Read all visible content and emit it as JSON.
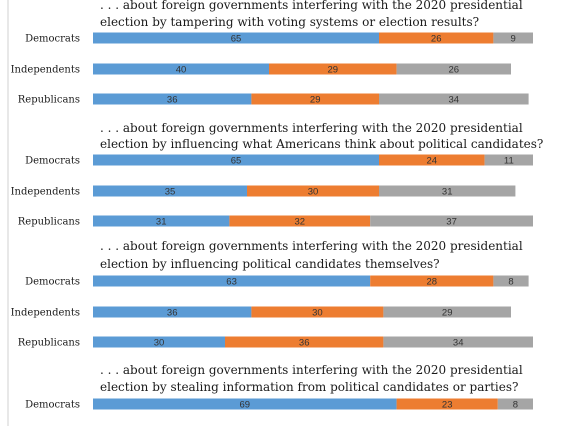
{
  "chart_data": {
    "type": "bar",
    "stacked": true,
    "orientation": "horizontal",
    "colors": [
      "#5B9BD5",
      "#ED7D31",
      "#A5A5A5"
    ],
    "categories": [
      "Democrats",
      "Independents",
      "Republicans"
    ],
    "panels": [
      {
        "title_lines": [
          ". . . about foreign governments interfering with the 2020 presidential",
          "election by tampering with voting systems or election results?"
        ],
        "rows": [
          {
            "label": "Democrats",
            "values": [
              65,
              26,
              9
            ]
          },
          {
            "label": "Independents",
            "values": [
              40,
              29,
              26
            ]
          },
          {
            "label": "Republicans",
            "values": [
              36,
              29,
              34
            ]
          }
        ]
      },
      {
        "title_lines": [
          ". . . about foreign governments interfering with the 2020 presidential",
          "election by influencing what Americans think about political candidates?"
        ],
        "rows": [
          {
            "label": "Democrats",
            "values": [
              65,
              24,
              11
            ]
          },
          {
            "label": "Independents",
            "values": [
              35,
              30,
              31
            ]
          },
          {
            "label": "Republicans",
            "values": [
              31,
              32,
              37
            ]
          }
        ]
      },
      {
        "title_lines": [
          ". . . about foreign governments interfering with the 2020 presidential",
          "election by influencing political candidates themselves?"
        ],
        "rows": [
          {
            "label": "Democrats",
            "values": [
              63,
              28,
              8
            ]
          },
          {
            "label": "Independents",
            "values": [
              36,
              30,
              29
            ]
          },
          {
            "label": "Republicans",
            "values": [
              30,
              36,
              34
            ]
          }
        ]
      },
      {
        "title_lines": [
          ". . . about foreign governments interfering with the 2020 presidential",
          "election by stealing information from political candidates or parties?"
        ],
        "rows": [
          {
            "label": "Democrats",
            "values": [
              69,
              23,
              8
            ]
          }
        ]
      }
    ]
  }
}
